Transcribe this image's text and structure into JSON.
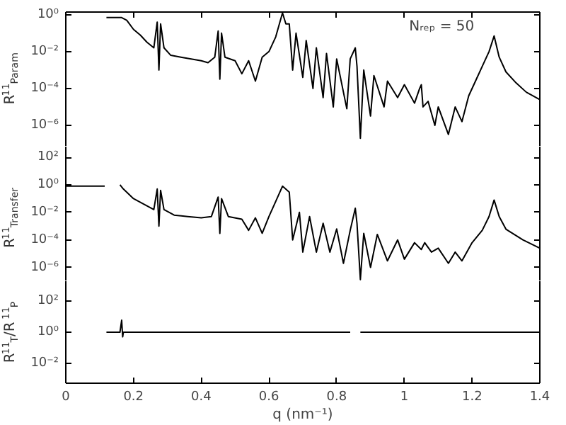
{
  "chart_data": [
    {
      "type": "line",
      "ylabel": "R$^{11}$$_{Param}$",
      "log": true,
      "xlim": [
        0,
        1.4
      ],
      "xticks": [
        0,
        0.2,
        0.4,
        0.6,
        0.8,
        1,
        1.2,
        1.4
      ],
      "ylim": [
        7e-08,
        1.4
      ],
      "yticks": [
        {
          "value": 1,
          "label": "10⁰"
        },
        {
          "value": 0.01,
          "label": "10⁻²"
        },
        {
          "value": 0.0001,
          "label": "10⁻⁴"
        },
        {
          "value": 1e-06,
          "label": "10⁻⁶"
        }
      ],
      "tick_labels": "y",
      "annotations": [
        "Nᵣₑₚ = 50"
      ],
      "series": [
        {
          "color": "#000000",
          "x": [
            0.12,
            0.165,
            0.18,
            0.2,
            0.22,
            0.24,
            0.26,
            0.27,
            0.275,
            0.28,
            0.29,
            0.31,
            0.34,
            0.37,
            0.4,
            0.42,
            0.44,
            0.45,
            0.455,
            0.46,
            0.47,
            0.5,
            0.52,
            0.54,
            0.56,
            0.58,
            0.6,
            0.62,
            0.64,
            0.65,
            0.66,
            0.67,
            0.68,
            0.7,
            0.71,
            0.73,
            0.74,
            0.76,
            0.77,
            0.79,
            0.8,
            0.83,
            0.84,
            0.855,
            0.86,
            0.87,
            0.88,
            0.9,
            0.91,
            0.94,
            0.95,
            0.98,
            1.0,
            1.03,
            1.045,
            1.05,
            1.055,
            1.07,
            1.09,
            1.1,
            1.13,
            1.15,
            1.17,
            1.19,
            1.21,
            1.23,
            1.25,
            1.265,
            1.28,
            1.3,
            1.33,
            1.36,
            1.4
          ],
          "values": [
            0.7,
            0.7,
            0.5,
            0.16,
            0.079,
            0.032,
            0.016,
            0.4,
            0.001,
            0.32,
            0.016,
            0.0063,
            0.005,
            0.004,
            0.0032,
            0.0025,
            0.005,
            0.13,
            0.00032,
            0.1,
            0.005,
            0.0032,
            0.00063,
            0.0032,
            0.00025,
            0.005,
            0.01,
            0.063,
            1.26,
            0.32,
            0.32,
            0.001,
            0.1,
            0.0004,
            0.04,
            0.0001,
            0.016,
            3.2e-05,
            0.0079,
            1e-05,
            0.004,
            7.9e-06,
            0.004,
            0.016,
            0.0016,
            2e-07,
            0.001,
            3.2e-06,
            0.0005,
            1e-05,
            0.00025,
            3.2e-05,
            0.00016,
            1.6e-05,
            0.0001,
            0.00016,
            1e-05,
            2e-05,
            1e-06,
            1e-05,
            3.2e-07,
            1e-05,
            1.6e-06,
            4e-05,
            0.00025,
            0.0016,
            0.01,
            0.071,
            0.005,
            0.00079,
            0.0002,
            6.3e-05,
            2.5e-05
          ]
        }
      ]
    },
    {
      "type": "line",
      "ylabel": "R$^{11}$$_{Transfer}$",
      "log": true,
      "xlim": [
        0,
        1.4
      ],
      "xticks": [
        0,
        0.2,
        0.4,
        0.6,
        0.8,
        1,
        1.2,
        1.4
      ],
      "ylim": [
        1e-07,
        600
      ],
      "yticks": [
        {
          "value": 100,
          "label": "10²"
        },
        {
          "value": 1,
          "label": "10⁰"
        },
        {
          "value": 0.01,
          "label": "10⁻²"
        },
        {
          "value": 0.0001,
          "label": "10⁻⁴"
        },
        {
          "value": 1e-06,
          "label": "10⁻⁶"
        }
      ],
      "tick_labels": "y",
      "series": [
        {
          "color": "#000000",
          "x": [
            0,
            0.115,
            0.14,
            0.16,
            0.17,
            0.2,
            0.23,
            0.26,
            0.27,
            0.275,
            0.28,
            0.29,
            0.32,
            0.36,
            0.4,
            0.43,
            0.45,
            0.455,
            0.46,
            0.48,
            0.52,
            0.54,
            0.56,
            0.58,
            0.6,
            0.62,
            0.64,
            0.66,
            0.67,
            0.69,
            0.7,
            0.72,
            0.74,
            0.76,
            0.78,
            0.8,
            0.82,
            0.84,
            0.855,
            0.86,
            0.87,
            0.88,
            0.9,
            0.92,
            0.95,
            0.98,
            1.0,
            1.03,
            1.05,
            1.06,
            1.08,
            1.1,
            1.13,
            1.15,
            1.17,
            1.2,
            1.23,
            1.25,
            1.265,
            1.28,
            1.3,
            1.35,
            1.4
          ],
          "values": [
            0.8,
            0.8,
            null,
            1.0,
            0.5,
            0.1,
            0.04,
            0.016,
            0.5,
            0.001,
            0.4,
            0.016,
            0.0063,
            0.005,
            0.004,
            0.005,
            0.13,
            0.0003,
            0.1,
            0.005,
            0.0032,
            0.0005,
            0.004,
            0.0003,
            0.005,
            0.063,
            0.8,
            0.3,
            0.0001,
            0.01,
            1.3e-05,
            0.005,
            1.3e-05,
            0.0016,
            1.3e-05,
            0.00063,
            2e-06,
            0.0005,
            0.02,
            0.0016,
            1.3e-07,
            0.0003,
            1e-06,
            0.00025,
            3e-06,
            0.0001,
            4e-06,
            6.3e-05,
            2e-05,
            6.3e-05,
            1.3e-05,
            2.5e-05,
            2e-06,
            1.3e-05,
            3e-06,
            6.3e-05,
            0.0005,
            0.005,
            0.079,
            0.005,
            0.0006,
            0.0001,
            2.5e-05
          ]
        }
      ]
    },
    {
      "type": "line",
      "ylabel": "R$^{11}$$_{T}$/R$^{11}$$_{P}$",
      "xlabel": "q (nm⁻¹)",
      "log": true,
      "xlim": [
        0,
        1.4
      ],
      "xticks": [
        0,
        0.2,
        0.4,
        0.6,
        0.8,
        1,
        1.2,
        1.4
      ],
      "ylim": [
        0.0005,
        2000
      ],
      "yticks": [
        {
          "value": 100,
          "label": "10²"
        },
        {
          "value": 1,
          "label": "10⁰"
        },
        {
          "value": 0.01,
          "label": "10⁻²"
        }
      ],
      "series": [
        {
          "color": "#000000",
          "x": [
            0.12,
            0.16,
            0.165,
            0.168,
            0.17,
            0.84
          ],
          "values": [
            1,
            1,
            6,
            0.5,
            1,
            1
          ]
        },
        {
          "color": "#000000",
          "x": [
            0.87,
            1.4
          ],
          "values": [
            1,
            1
          ]
        }
      ]
    }
  ]
}
